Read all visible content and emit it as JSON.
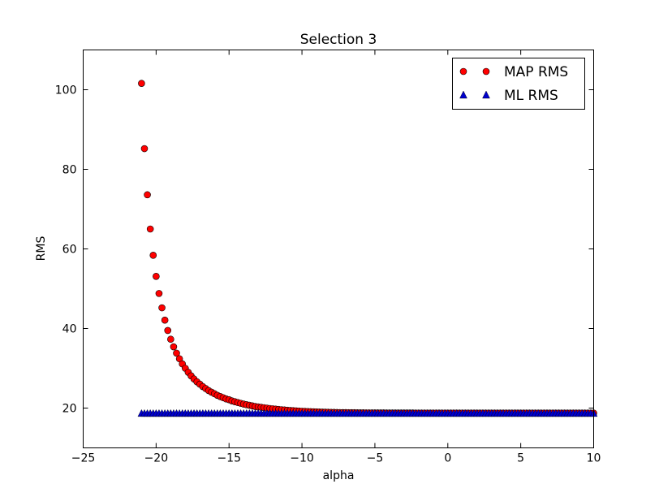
{
  "chart_data": {
    "type": "scatter",
    "title": "Selection 3",
    "xlabel": "alpha",
    "ylabel": "RMS",
    "xlim": [
      -25,
      10
    ],
    "ylim": [
      10,
      110
    ],
    "xticks": [
      -25,
      -20,
      -15,
      -10,
      -5,
      0,
      5,
      10
    ],
    "xtick_labels": [
      "−25",
      "−20",
      "−15",
      "−10",
      "−5",
      "0",
      "5",
      "10"
    ],
    "yticks": [
      20,
      40,
      60,
      80,
      100
    ],
    "ytick_labels": [
      "20",
      "40",
      "60",
      "80",
      "100"
    ],
    "grid": false,
    "legend_position": "top-right",
    "series": [
      {
        "name": "MAP RMS",
        "marker": "circle",
        "color": "#ff0000",
        "x_start": -21.0,
        "x_step": 0.2,
        "y": [
          101.6,
          85.2,
          73.6,
          65.0,
          58.4,
          53.1,
          48.8,
          45.2,
          42.1,
          39.5,
          37.3,
          35.4,
          33.8,
          32.4,
          31.1,
          30.0,
          29.0,
          28.1,
          27.3,
          26.6,
          26.0,
          25.4,
          24.9,
          24.4,
          24.0,
          23.6,
          23.2,
          22.9,
          22.6,
          22.3,
          22.1,
          21.8,
          21.6,
          21.4,
          21.2,
          21.0,
          20.85,
          20.7,
          20.55,
          20.4,
          20.3,
          20.2,
          20.1,
          20.0,
          19.9,
          19.82,
          19.74,
          19.66,
          19.59,
          19.52,
          19.46,
          19.4,
          19.35,
          19.3,
          19.25,
          19.21,
          19.17,
          19.13,
          19.1,
          19.07,
          19.04,
          19.01,
          18.99,
          18.97,
          18.95,
          18.93,
          18.91,
          18.89,
          18.88,
          18.87,
          18.86,
          18.85,
          18.84,
          18.83,
          18.82,
          18.81,
          18.81,
          18.8,
          18.8,
          18.79,
          18.79,
          18.78,
          18.78,
          18.78,
          18.77,
          18.77,
          18.77,
          18.77,
          18.76,
          18.76,
          18.76,
          18.76,
          18.76,
          18.76,
          18.75,
          18.75,
          18.75,
          18.75,
          18.75,
          18.75,
          18.75,
          18.75,
          18.75,
          18.75,
          18.75,
          18.75,
          18.75,
          18.75,
          18.75,
          18.75,
          18.75,
          18.75,
          18.75,
          18.75,
          18.75,
          18.75,
          18.75,
          18.75,
          18.75,
          18.75,
          18.75,
          18.75,
          18.75,
          18.75,
          18.75,
          18.75,
          18.75,
          18.75,
          18.75,
          18.75,
          18.75,
          18.75,
          18.75,
          18.75,
          18.75,
          18.75,
          18.75,
          18.75,
          18.75,
          18.75,
          18.75,
          18.75,
          18.75,
          18.75,
          18.75,
          18.75,
          18.75,
          18.75,
          18.75,
          18.75,
          18.75,
          18.75,
          18.75,
          18.75,
          18.75,
          18.75,
          18.75,
          18.75,
          18.75,
          18.75,
          18.75,
          18.75,
          18.75,
          18.75,
          18.75,
          18.75,
          18.75,
          18.75,
          18.75,
          18.75,
          18.75,
          18.75,
          18.75,
          18.75,
          18.75,
          18.75,
          18.75,
          18.75,
          18.75
        ]
      },
      {
        "name": "ML RMS",
        "marker": "triangle",
        "color": "#0000cc",
        "x_start": -21.0,
        "x_step": 0.2,
        "y_const": 18.7,
        "count": 156
      }
    ]
  }
}
